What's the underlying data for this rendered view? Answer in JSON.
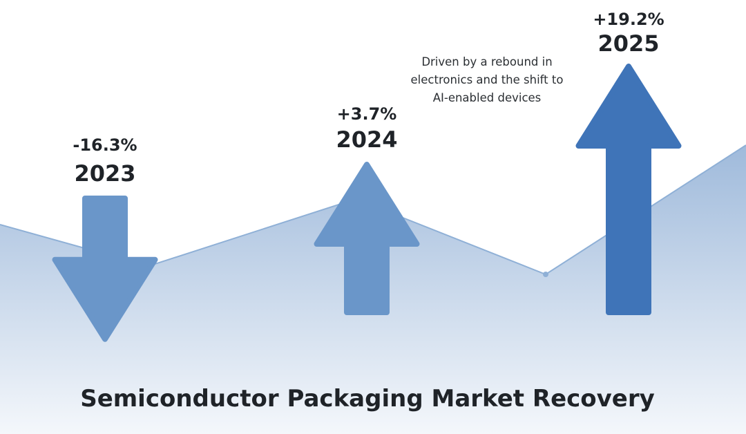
{
  "chart_data": {
    "type": "bar",
    "title": "Semiconductor Packaging Market Recovery",
    "categories": [
      "2023",
      "2024",
      "2025"
    ],
    "values": [
      -16.3,
      3.7,
      19.2
    ],
    "value_labels": [
      "-16.3%",
      "+3.7%",
      "+19.2%"
    ],
    "annotation": {
      "lines": [
        "Driven by a rebound in",
        "electronics and the shift to",
        "AI-enabled devices"
      ]
    },
    "colors": {
      "arrow_light": "#6a96c9",
      "arrow_dark": "#3f74b8",
      "area_top": "#9fbadb",
      "area_bottom": "#f4f7fb",
      "area_line": "#8fb0d6"
    }
  }
}
